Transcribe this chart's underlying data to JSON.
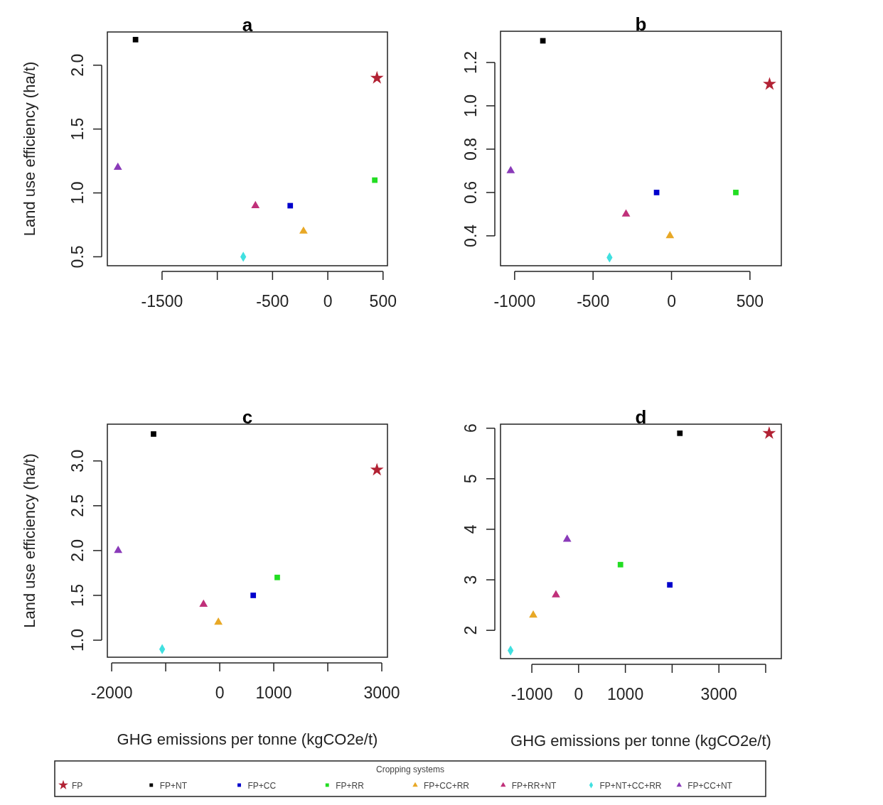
{
  "chart_data": [
    {
      "type": "scatter",
      "title": "a",
      "ylabel": "Land use efficiency (ha/t)",
      "xlim": [
        -1995,
        540
      ],
      "ylim": [
        0.43,
        2.26
      ],
      "xticks": [
        -1500,
        {
          "value": -1000,
          "label": null
        },
        -500,
        0,
        500
      ],
      "yticks": [
        0.5,
        {
          "value": 1,
          "label": "1.0"
        },
        1.5,
        {
          "value": 2,
          "label": "2.0"
        }
      ],
      "grid": false,
      "series": [
        {
          "color": "#b22234",
          "marker": "star",
          "x": [
            445
          ],
          "values": [
            1.9
          ]
        },
        {
          "color": "#000000",
          "marker": "square",
          "x": [
            -1740
          ],
          "values": [
            2.2
          ]
        },
        {
          "color": "#0000cc",
          "marker": "square",
          "x": [
            -340
          ],
          "values": [
            0.9
          ]
        },
        {
          "color": "#22dd22",
          "marker": "square",
          "x": [
            425
          ],
          "values": [
            1.1
          ]
        },
        {
          "color": "#e8a826",
          "marker": "triangle",
          "x": [
            -220
          ],
          "values": [
            0.7
          ]
        },
        {
          "color": "#c0307a",
          "marker": "triangle",
          "x": [
            -655
          ],
          "values": [
            0.9
          ]
        },
        {
          "color": "#40e0e0",
          "marker": "diamond",
          "x": [
            -765
          ],
          "values": [
            0.5
          ]
        },
        {
          "color": "#8a3ab9",
          "marker": "triangle",
          "x": [
            -1900
          ],
          "values": [
            1.2
          ]
        }
      ]
    },
    {
      "type": "scatter",
      "title": "b",
      "xlim": [
        -1090,
        700
      ],
      "ylim": [
        0.262,
        1.344
      ],
      "xticks": [
        -1000,
        -500,
        0,
        500
      ],
      "yticks": [
        0.4,
        0.6,
        0.8,
        {
          "value": 1,
          "label": "1.0"
        },
        1.2
      ],
      "grid": false,
      "series": [
        {
          "color": "#b22234",
          "marker": "star",
          "x": [
            625
          ],
          "values": [
            1.1
          ]
        },
        {
          "color": "#000000",
          "marker": "square",
          "x": [
            -820
          ],
          "values": [
            1.3
          ]
        },
        {
          "color": "#0000cc",
          "marker": "square",
          "x": [
            -95
          ],
          "values": [
            0.6
          ]
        },
        {
          "color": "#22dd22",
          "marker": "square",
          "x": [
            410
          ],
          "values": [
            0.6
          ]
        },
        {
          "color": "#e8a826",
          "marker": "triangle",
          "x": [
            -10
          ],
          "values": [
            0.4
          ]
        },
        {
          "color": "#c0307a",
          "marker": "triangle",
          "x": [
            -290
          ],
          "values": [
            0.5
          ]
        },
        {
          "color": "#40e0e0",
          "marker": "diamond",
          "x": [
            -395
          ],
          "values": [
            0.3
          ]
        },
        {
          "color": "#8a3ab9",
          "marker": "triangle",
          "x": [
            -1025
          ],
          "values": [
            0.7
          ]
        }
      ]
    },
    {
      "type": "scatter",
      "title": "c",
      "ylabel": "Land use efficiency (ha/t)",
      "xlabel": "GHG emissions per tonne (kgCO2e/t)",
      "xlim": [
        -2080,
        3105
      ],
      "ylim": [
        0.81,
        3.41
      ],
      "xticks": [
        -2000,
        {
          "value": -1000,
          "label": null
        },
        0,
        1000,
        {
          "value": 2000,
          "label": null
        },
        3000
      ],
      "yticks": [
        {
          "value": 1,
          "label": "1.0"
        },
        1.5,
        {
          "value": 2,
          "label": "2.0"
        },
        2.5,
        {
          "value": 3,
          "label": "3.0"
        }
      ],
      "grid": false,
      "series": [
        {
          "color": "#b22234",
          "marker": "star",
          "x": [
            2910
          ],
          "values": [
            2.9
          ]
        },
        {
          "color": "#000000",
          "marker": "square",
          "x": [
            -1225
          ],
          "values": [
            3.3
          ]
        },
        {
          "color": "#0000cc",
          "marker": "square",
          "x": [
            620
          ],
          "values": [
            1.5
          ]
        },
        {
          "color": "#22dd22",
          "marker": "square",
          "x": [
            1065
          ],
          "values": [
            1.7
          ]
        },
        {
          "color": "#e8a826",
          "marker": "triangle",
          "x": [
            -25
          ],
          "values": [
            1.2
          ]
        },
        {
          "color": "#c0307a",
          "marker": "triangle",
          "x": [
            -300
          ],
          "values": [
            1.4
          ]
        },
        {
          "color": "#40e0e0",
          "marker": "diamond",
          "x": [
            -1065
          ],
          "values": [
            0.9
          ]
        },
        {
          "color": "#8a3ab9",
          "marker": "triangle",
          "x": [
            -1880
          ],
          "values": [
            2.0
          ]
        }
      ]
    },
    {
      "type": "scatter",
      "title": "d",
      "xlabel": "GHG emissions per tonne (kgCO2e/t)",
      "legend": "bottom",
      "legend_title": "Cropping systems",
      "xlim": [
        -1670,
        4335
      ],
      "ylim": [
        1.44,
        6.08
      ],
      "xticks": [
        -1000,
        0,
        1000,
        {
          "value": 2000,
          "label": null
        },
        3000,
        {
          "value": 4000,
          "label": null
        }
      ],
      "yticks": [
        2,
        3,
        4,
        5,
        6
      ],
      "grid": false,
      "series": [
        {
          "name": "FP",
          "color": "#b22234",
          "marker": "star",
          "x": [
            4075
          ],
          "values": [
            5.9
          ]
        },
        {
          "name": "FP+NT",
          "color": "#000000",
          "marker": "square",
          "x": [
            2165
          ],
          "values": [
            5.9
          ]
        },
        {
          "name": "FP+CC",
          "color": "#0000cc",
          "marker": "square",
          "x": [
            1950
          ],
          "values": [
            2.9
          ]
        },
        {
          "name": "FP+RR",
          "color": "#22dd22",
          "marker": "square",
          "x": [
            895
          ],
          "values": [
            3.3
          ]
        },
        {
          "name": "FP+CC+RR",
          "color": "#e8a826",
          "marker": "triangle",
          "x": [
            -970
          ],
          "values": [
            2.3
          ]
        },
        {
          "name": "FP+RR+NT",
          "color": "#c0307a",
          "marker": "triangle",
          "x": [
            -485
          ],
          "values": [
            2.7
          ]
        },
        {
          "name": "FP+NT+CC+RR",
          "color": "#40e0e0",
          "marker": "diamond",
          "x": [
            -1455
          ],
          "values": [
            1.6
          ]
        },
        {
          "name": "FP+CC+NT",
          "color": "#8a3ab9",
          "marker": "triangle",
          "x": [
            -245
          ],
          "values": [
            3.8
          ]
        }
      ]
    }
  ]
}
